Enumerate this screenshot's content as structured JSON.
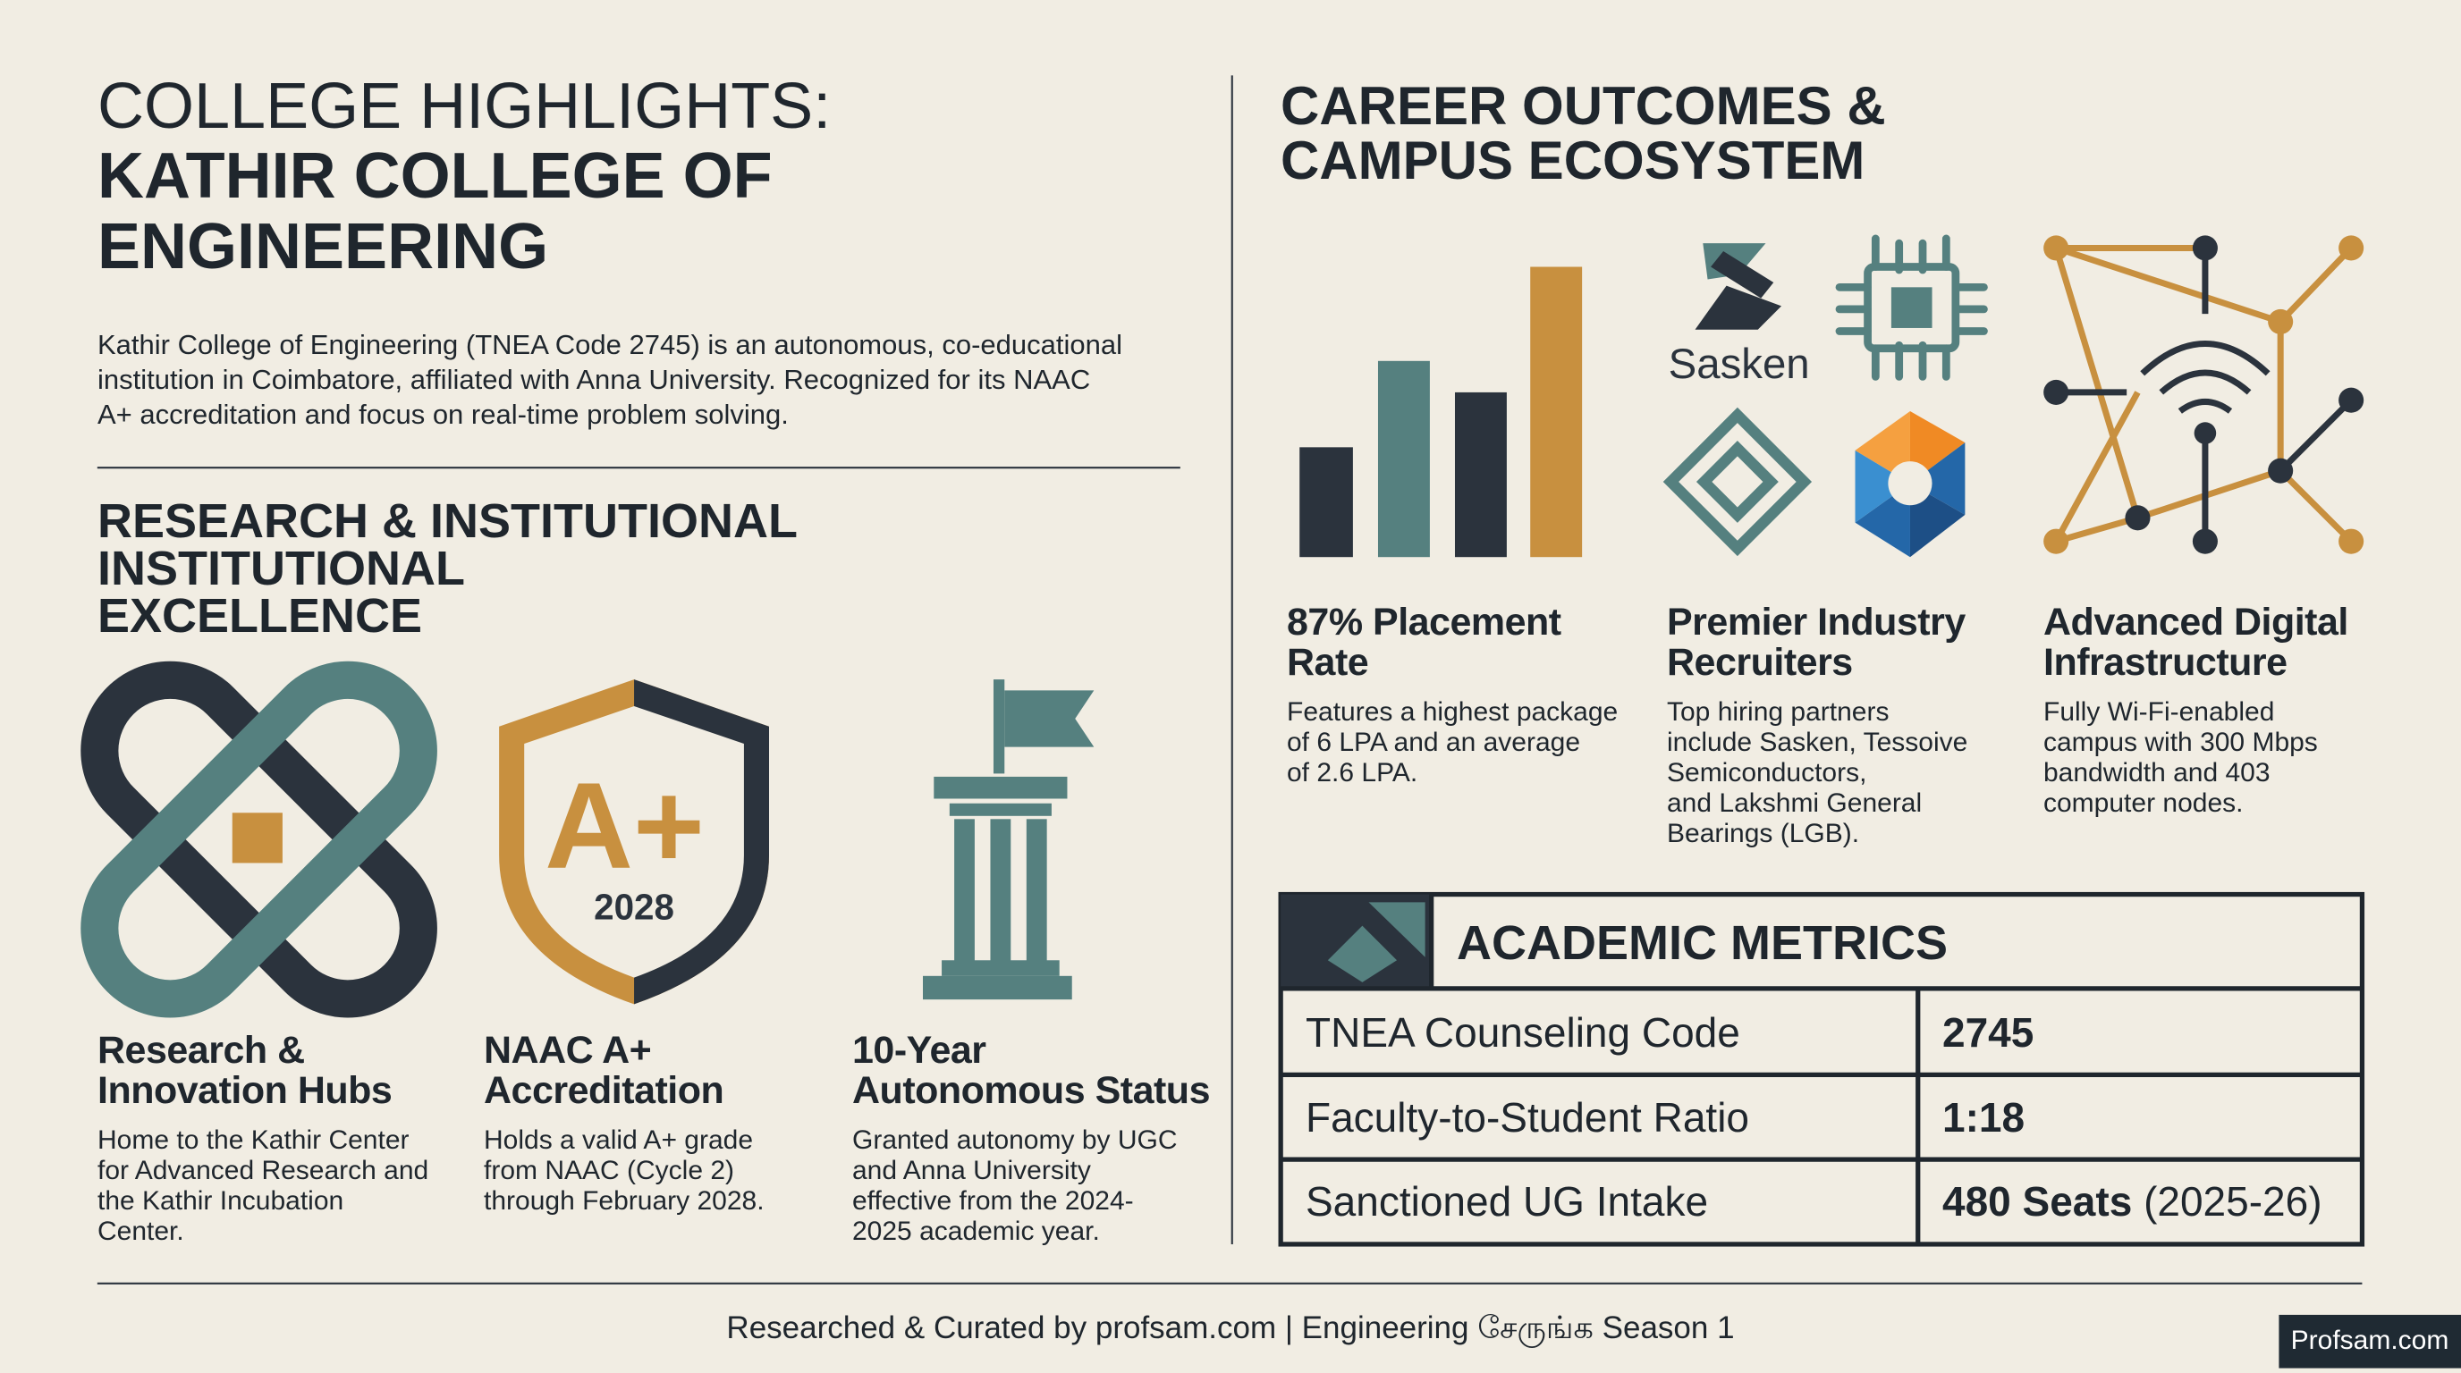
{
  "header": {
    "title": "COLLEGE HIGHLIGHTS:",
    "subtitle_lines": [
      "KATHIR COLLEGE OF",
      "ENGINEERING"
    ],
    "intro_lines": [
      "Kathir College of Engineering (TNEA Code 2745) is an autonomous, co-educational",
      "institution in Coimbatore, affiliated with Anna University. Recognized for its NAAC",
      "A+ accreditation and focus on real-time problem solving."
    ]
  },
  "research": {
    "heading_lines": [
      "RESEARCH &  INSTITUTIONAL",
      "INSTITUTIONAL",
      "EXCELLENCE"
    ],
    "badge": {
      "grade": "A+",
      "year": "2028"
    },
    "items": [
      {
        "title_lines": [
          "Research &",
          "Innovation Hubs"
        ],
        "description_lines": [
          "Home to the Kathir Center",
          "for Advanced Research and",
          "the Kathir Incubation",
          "Center."
        ]
      },
      {
        "title_lines": [
          "NAAC A+",
          "Accreditation"
        ],
        "description_lines": [
          "Holds a valid A+ grade",
          "from NAAC (Cycle 2)",
          "through February 2028."
        ]
      },
      {
        "title_lines": [
          "10-Year",
          "Autonomous Status"
        ],
        "description_lines": [
          "Granted autonomy by UGC",
          "and Anna University",
          "effective from the 2024-",
          "2025 academic year."
        ]
      }
    ]
  },
  "career": {
    "heading_lines": [
      "CAREER OUTCOMES &",
      "CAMPUS ECOSYSTEM"
    ],
    "logo_text": "Sasken",
    "items": [
      {
        "title_lines": [
          "87% Placement",
          "Rate"
        ],
        "description_lines": [
          "Features a highest package",
          "of 6 LPA and an average",
          "of 2.6 LPA."
        ]
      },
      {
        "title_lines": [
          "Premier Industry",
          "Recruiters"
        ],
        "description_lines": [
          "Top hiring partners",
          "include Sasken, Tessoive",
          "Semiconductors,",
          "and Lakshmi General",
          "Bearings (LGB)."
        ]
      },
      {
        "title_lines": [
          "Advanced Digital",
          "Infrastructure"
        ],
        "description_lines": [
          "Fully Wi-Fi-enabled",
          "campus with 300 Mbps",
          "bandwidth and 403",
          "computer nodes."
        ]
      }
    ]
  },
  "metrics": {
    "title": "ACADEMIC METRICS",
    "rows": [
      {
        "label": "TNEA Counseling Code",
        "value": "2745"
      },
      {
        "label": "Faculty-to-Student Ratio",
        "value": "1:18"
      },
      {
        "label": "Sanctioned UG Intake",
        "value": "480 Seats",
        "note": "(2025-26)"
      }
    ]
  },
  "footer": "Researched & Curated by profsam.com | Engineering சேருங்க Season 1",
  "watermark": "Profsam.com"
}
